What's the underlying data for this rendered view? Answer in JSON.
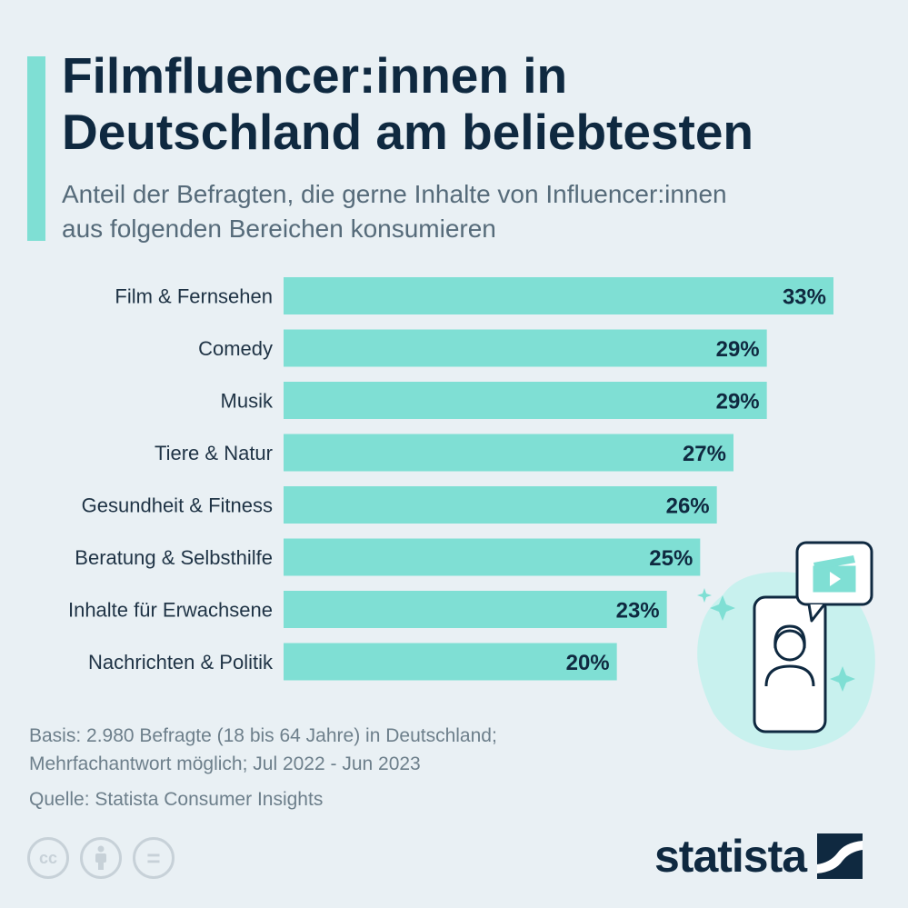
{
  "title": "Filmfluencer:innen in\nDeutschland am beliebtesten",
  "subtitle": "Anteil der Befragten, die gerne Inhalte von Influencer:innen\naus folgenden Bereichen konsumieren",
  "chart_data": {
    "type": "bar",
    "orientation": "horizontal",
    "categories": [
      "Film & Fernsehen",
      "Comedy",
      "Musik",
      "Tiere & Natur",
      "Gesundheit & Fitness",
      "Beratung & Selbsthilfe",
      "Inhalte für Erwachsene",
      "Nachrichten & Politik"
    ],
    "values": [
      33,
      29,
      29,
      27,
      26,
      25,
      23,
      20
    ],
    "value_labels": [
      "33%",
      "29%",
      "29%",
      "27%",
      "26%",
      "25%",
      "23%",
      "20%"
    ],
    "unit": "%",
    "xlim": [
      0,
      33
    ],
    "grid": false,
    "bar_color": "#7fdfd4"
  },
  "footnote": {
    "basis": "Basis: 2.980 Befragte (18 bis 64 Jahre) in Deutschland;\nMehrfachantwort möglich; Jul 2022 - Jun 2023",
    "source": "Quelle: Statista Consumer Insights"
  },
  "license_icons": {
    "cc": "cc",
    "equals": "="
  },
  "brand": {
    "name": "statista"
  },
  "colors": {
    "background": "#e9f0f4",
    "accent": "#7fdfd4",
    "title": "#0f2940",
    "text_muted": "#566b7a"
  }
}
